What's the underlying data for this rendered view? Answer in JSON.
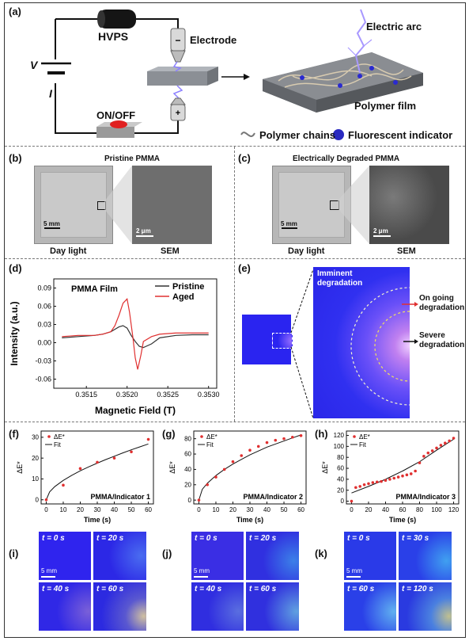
{
  "panel_a": {
    "label": "(a)",
    "hvps": "HVPS",
    "electrode": "Electrode",
    "minus": "-",
    "plus": "+",
    "v": "V",
    "i": "I",
    "onoff": "ON/OFF",
    "arc": "Electric arc",
    "film": "Polymer film",
    "legend_chains": "Polymer chains",
    "legend_indicator": "Fluorescent indicator"
  },
  "panel_b": {
    "label": "(b)",
    "title": "Pristine PMMA",
    "scale1": "5 mm",
    "scale2": "2 μm",
    "cap1": "Day light",
    "cap2": "SEM"
  },
  "panel_c": {
    "label": "(c)",
    "title": "Electrically Degraded PMMA",
    "scale1": "5 mm",
    "scale2": "2 μm",
    "cap1": "Day light",
    "cap2": "SEM"
  },
  "panel_d": {
    "label": "(d)"
  },
  "panel_e": {
    "label": "(e)",
    "imminent": "Imminent degradation",
    "ongoing": "On going degradation",
    "severe": "Severe degradation"
  },
  "panel_i": {
    "label": "(i)",
    "t1": "t = 0 s",
    "t2": "t = 20 s",
    "t3": "t = 40 s",
    "t4": "t = 60 s",
    "scale": "5 mm"
  },
  "panel_j": {
    "label": "(j)",
    "t1": "t = 0 s",
    "t2": "t = 20 s",
    "t3": "t = 40 s",
    "t4": "t = 60 s",
    "scale": "5 mm"
  },
  "panel_k": {
    "label": "(k)",
    "t1": "t = 0 s",
    "t2": "t = 30 s",
    "t3": "t = 60 s",
    "t4": "t = 120 s",
    "scale": "5 mm"
  },
  "chart_data": [
    {
      "id": "d",
      "type": "line",
      "title": "PMMA Film",
      "xlabel": "Magnetic Field (T)",
      "ylabel": "Intensity (a.u.)",
      "xlim": [
        0.3511,
        0.3531
      ],
      "ylim": [
        -0.075,
        0.105
      ],
      "xticks": [
        "0.3515",
        "0.3520",
        "0.3525",
        "0.3530"
      ],
      "xtick_values": [
        0.3515,
        0.352,
        0.3525,
        0.353
      ],
      "yticks": [
        "-0.06",
        "-0.03",
        "0.00",
        "0.03",
        "0.06",
        "0.09"
      ],
      "ytick_values": [
        -0.06,
        -0.03,
        0.0,
        0.03,
        0.06,
        0.09
      ],
      "legend": "top-right",
      "series": [
        {
          "name": "Pristine",
          "color": "#333333",
          "x": [
            0.3512,
            0.3514,
            0.3516,
            0.3517,
            0.3518,
            0.35185,
            0.3519,
            0.35195,
            0.352,
            0.35205,
            0.3521,
            0.35215,
            0.3522,
            0.3523,
            0.3524,
            0.3526,
            0.3528,
            0.353
          ],
          "y": [
            0.008,
            0.01,
            0.012,
            0.014,
            0.018,
            0.022,
            0.026,
            0.028,
            0.024,
            0.012,
            0.002,
            -0.006,
            -0.008,
            -0.002,
            0.008,
            0.012,
            0.013,
            0.013
          ]
        },
        {
          "name": "Aged",
          "color": "#e03030",
          "x": [
            0.3512,
            0.3514,
            0.3516,
            0.3517,
            0.3518,
            0.35185,
            0.3519,
            0.35195,
            0.352,
            0.35203,
            0.35207,
            0.3521,
            0.35213,
            0.35217,
            0.3522,
            0.3523,
            0.3524,
            0.3526,
            0.3528,
            0.353
          ],
          "y": [
            0.01,
            0.012,
            0.012,
            0.014,
            0.018,
            0.028,
            0.045,
            0.065,
            0.072,
            0.05,
            0.01,
            -0.025,
            -0.044,
            -0.02,
            0.002,
            0.01,
            0.014,
            0.016,
            0.016,
            0.016
          ]
        }
      ]
    },
    {
      "id": "f",
      "type": "scatter",
      "annotation": "PMMA/Indicator 1",
      "xlabel": "Time (s)",
      "ylabel": "ΔE*",
      "xlim": [
        -3,
        63
      ],
      "ylim": [
        -2,
        33
      ],
      "xticks": [
        "0",
        "10",
        "20",
        "30",
        "40",
        "50",
        "60"
      ],
      "xtick_values": [
        0,
        10,
        20,
        30,
        40,
        50,
        60
      ],
      "yticks": [
        "0",
        "10",
        "20",
        "30"
      ],
      "ytick_values": [
        0,
        10,
        20,
        30
      ],
      "legend_points": "ΔE*",
      "legend_line": "Fit",
      "points": {
        "x": [
          0,
          10,
          20,
          30,
          40,
          50,
          60
        ],
        "y": [
          0,
          7,
          15,
          18,
          20,
          23,
          29
        ]
      },
      "fit": {
        "x": [
          0,
          2,
          5,
          10,
          15,
          20,
          25,
          30,
          35,
          40,
          45,
          50,
          55,
          60
        ],
        "y": [
          0,
          3.8,
          6.3,
          9.3,
          11.7,
          13.9,
          15.8,
          17.6,
          19.3,
          20.9,
          22.5,
          24.0,
          25.4,
          26.8
        ]
      }
    },
    {
      "id": "g",
      "type": "scatter",
      "annotation": "PMMA/Indicator 2",
      "xlabel": "Time (s)",
      "ylabel": "ΔE*",
      "xlim": [
        -3,
        63
      ],
      "ylim": [
        -5,
        90
      ],
      "xticks": [
        "0",
        "10",
        "20",
        "30",
        "40",
        "50",
        "60"
      ],
      "xtick_values": [
        0,
        10,
        20,
        30,
        40,
        50,
        60
      ],
      "yticks": [
        "0",
        "20",
        "40",
        "60",
        "80"
      ],
      "ytick_values": [
        0,
        20,
        40,
        60,
        80
      ],
      "legend_points": "ΔE*",
      "legend_line": "Fit",
      "points": {
        "x": [
          0,
          5,
          10,
          15,
          20,
          25,
          30,
          35,
          40,
          45,
          50,
          55,
          60
        ],
        "y": [
          0,
          20,
          30,
          40,
          50,
          58,
          65,
          70,
          75,
          78,
          80,
          82,
          84
        ]
      },
      "fit": {
        "x": [
          0,
          2,
          5,
          10,
          15,
          20,
          25,
          30,
          35,
          40,
          45,
          50,
          55,
          60
        ],
        "y": [
          0,
          14,
          22,
          32,
          40,
          47,
          53,
          59,
          64,
          69,
          73,
          77,
          81,
          85
        ]
      }
    },
    {
      "id": "h",
      "type": "scatter",
      "annotation": "PMMA/Indicator 3",
      "xlabel": "Time (s)",
      "ylabel": "ΔE*",
      "xlim": [
        -6,
        126
      ],
      "ylim": [
        -5,
        128
      ],
      "xticks": [
        "0",
        "20",
        "40",
        "60",
        "80",
        "100",
        "120"
      ],
      "xtick_values": [
        0,
        20,
        40,
        60,
        80,
        100,
        120
      ],
      "yticks": [
        "0",
        "20",
        "40",
        "60",
        "80",
        "100",
        "120"
      ],
      "ytick_values": [
        0,
        20,
        40,
        60,
        80,
        100,
        120
      ],
      "legend_points": "ΔE*",
      "legend_line": "Fit",
      "points": {
        "x": [
          0,
          5,
          10,
          15,
          20,
          25,
          30,
          35,
          40,
          45,
          50,
          55,
          60,
          65,
          70,
          75,
          80,
          85,
          90,
          95,
          100,
          105,
          110,
          115,
          120
        ],
        "y": [
          0,
          25,
          27,
          30,
          32,
          34,
          35,
          36,
          38,
          40,
          42,
          44,
          46,
          48,
          50,
          55,
          70,
          82,
          88,
          92,
          97,
          102,
          106,
          110,
          115
        ]
      },
      "fit": {
        "x": [
          0,
          20,
          40,
          60,
          80,
          100,
          120
        ],
        "y": [
          15,
          27,
          40,
          55,
          72,
          93,
          113
        ]
      }
    }
  ]
}
